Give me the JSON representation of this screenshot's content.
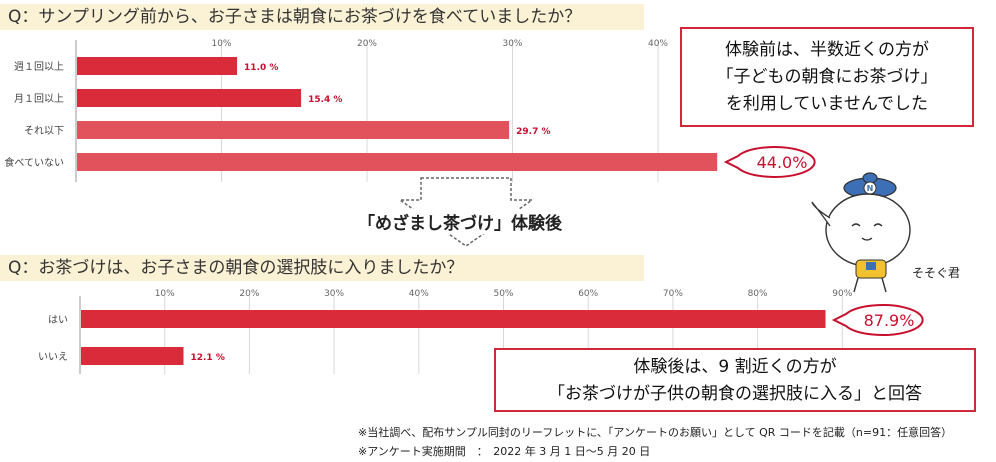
{
  "q1": {
    "question": "Q：サンプリング前から、お子さまは朝食にお茶づけを食べていましたか？"
  },
  "q2": {
    "question": "Q：お茶づけは、お子さまの朝食の選択肢に入りましたか？"
  },
  "transition_title": "「めざまし茶づけ」体験後",
  "callout_before": {
    "lines": [
      "体験前は、半数近くの方が",
      "「子どもの朝食にお茶づけ」",
      "を利用していませんでした"
    ]
  },
  "callout_after": {
    "lines": [
      "体験後は、9 割近くの方が",
      "「お茶づけが子供の朝食の選択肢に入る」と回答"
    ]
  },
  "highlight_before": "44.0%",
  "highlight_after": "87.9%",
  "mascot": {
    "name": "そそぐ君",
    "icon": "teapot-mascot-icon",
    "badge": "N"
  },
  "footnotes": [
    "※当社調べ、配布サンプル同封のリーフレットに、「アンケートのお願い」として QR コードを記載（n=91：任意回答）",
    "※アンケート実施期間　：　2022 年 3 月 1 日～5 月 20 日"
  ],
  "colors": {
    "bar": "#d92b3a",
    "bar_light": "#e2525d",
    "accent": "#c8102e",
    "banner": "#fbf2d5"
  },
  "chart_data": [
    {
      "type": "bar",
      "orientation": "horizontal",
      "title": "Q：サンプリング前から、お子さまは朝食にお茶づけを食べていましたか？",
      "categories": [
        "週１回以上",
        "月１回以上",
        "それ以下",
        "食べていない"
      ],
      "values": [
        11.0,
        15.4,
        29.7,
        44.0
      ],
      "value_labels": [
        "11.0 %",
        "15.4 %",
        "29.7 %",
        "44.0%"
      ],
      "ticks": [
        10,
        20,
        30,
        40
      ],
      "tick_labels": [
        "10%",
        "20%",
        "30%",
        "40%"
      ],
      "xlim": [
        0,
        45
      ],
      "grid": true
    },
    {
      "type": "bar",
      "orientation": "horizontal",
      "title": "Q：お茶づけは、お子さまの朝食の選択肢に入りましたか？",
      "categories": [
        "はい",
        "いいえ"
      ],
      "values": [
        87.9,
        12.1
      ],
      "value_labels": [
        "87.9%",
        "12.1 %"
      ],
      "ticks": [
        10,
        20,
        30,
        40,
        50,
        60,
        70,
        80,
        90
      ],
      "tick_labels": [
        "10%",
        "20%",
        "30%",
        "40%",
        "50%",
        "60%",
        "70%",
        "80%",
        "90%"
      ],
      "xlim": [
        0,
        90
      ],
      "grid": true
    }
  ]
}
